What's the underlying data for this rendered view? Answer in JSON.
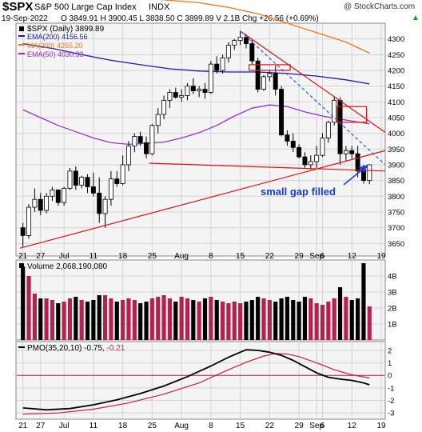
{
  "header": {
    "symbol": "$SPX",
    "name": "S&P 500 Large Cap Index",
    "exchange": "INDX",
    "date": "19-Sep-2022",
    "quote": "O 3849.91  H 3900.45  L 3838.50  C 3899.89  V 2.1B  Chg +26.56 (+0.69%)",
    "arrow_glyph": "▲",
    "watermark": "@ StockCharts.com"
  },
  "legend": {
    "price": "$SPX (Daily) 3899.89",
    "ema200": "EMA(200) 4156.56",
    "ma200": "MA(200) 4255.20",
    "ema50": "EMA(50) 4030.33"
  },
  "annotation": "small gap filled",
  "volume_label": "Volume 2,068,190,080",
  "pmo_label": "PMO(35,20,10) -0.75, ",
  "pmo_signal_value": "-0.21",
  "colors": {
    "up": "#ffffff",
    "down": "#000000",
    "ema200": "#1a1ab0",
    "ma200": "#f07818",
    "ema50": "#9a30cc",
    "trend": "#e01010",
    "blue_trend": "#2060e0",
    "annotation": "#1a3ce0",
    "volume_up": "#b42050",
    "volume_down": "#000000",
    "pmo": "#000000",
    "pmo_signal": "#c81e3c",
    "grid": "#d4d4d4",
    "panel_bg": "#f4f4f4"
  },
  "chart_data": [
    {
      "type": "candlestick",
      "panel": "price",
      "y_ticks": [
        3650,
        3700,
        3750,
        3800,
        3850,
        3900,
        3950,
        4000,
        4050,
        4100,
        4150,
        4200,
        4250,
        4300
      ],
      "ylim": [
        3610,
        4350
      ],
      "x_labels": [
        {
          "i": 0,
          "label": "21"
        },
        {
          "i": 3,
          "label": "27"
        },
        {
          "i": 7,
          "label": "Jul"
        },
        {
          "i": 12,
          "label": "11"
        },
        {
          "i": 17,
          "label": "18"
        },
        {
          "i": 22,
          "label": "25"
        },
        {
          "i": 27,
          "label": "Aug"
        },
        {
          "i": 32,
          "label": "8"
        },
        {
          "i": 37,
          "label": "15"
        },
        {
          "i": 42,
          "label": "22"
        },
        {
          "i": 47,
          "label": "29"
        },
        {
          "i": 50,
          "label": "Sep"
        },
        {
          "i": 51,
          "label": "6"
        },
        {
          "i": 56,
          "label": "12"
        },
        {
          "i": 61,
          "label": "19"
        }
      ],
      "ohlc": [
        [
          3700,
          3715,
          3640,
          3675
        ],
        [
          3675,
          3775,
          3665,
          3765
        ],
        [
          3765,
          3825,
          3750,
          3790
        ],
        [
          3790,
          3810,
          3740,
          3755
        ],
        [
          3755,
          3810,
          3745,
          3800
        ],
        [
          3800,
          3830,
          3785,
          3820
        ],
        [
          3820,
          3822,
          3770,
          3780
        ],
        [
          3780,
          3830,
          3770,
          3825
        ],
        [
          3825,
          3890,
          3820,
          3880
        ],
        [
          3880,
          3895,
          3820,
          3835
        ],
        [
          3835,
          3865,
          3825,
          3860
        ],
        [
          3860,
          3870,
          3810,
          3830
        ],
        [
          3830,
          3875,
          3800,
          3810
        ],
        [
          3810,
          3860,
          3715,
          3745
        ],
        [
          3745,
          3800,
          3700,
          3790
        ],
        [
          3790,
          3880,
          3770,
          3855
        ],
        [
          3855,
          3880,
          3830,
          3840
        ],
        [
          3840,
          3930,
          3835,
          3900
        ],
        [
          3900,
          3975,
          3880,
          3960
        ],
        [
          3960,
          4000,
          3940,
          3990
        ],
        [
          3990,
          4005,
          3960,
          3970
        ],
        [
          3970,
          3990,
          3920,
          3935
        ],
        [
          3935,
          4030,
          3930,
          4025
        ],
        [
          4025,
          4080,
          4000,
          4060
        ],
        [
          4060,
          4120,
          4045,
          4105
        ],
        [
          4105,
          4140,
          4080,
          4130
        ],
        [
          4130,
          4145,
          4110,
          4115
        ],
        [
          4115,
          4140,
          4100,
          4120
        ],
        [
          4120,
          4160,
          4105,
          4150
        ],
        [
          4150,
          4175,
          4125,
          4135
        ],
        [
          4135,
          4150,
          4115,
          4140
        ],
        [
          4140,
          4160,
          4110,
          4130
        ],
        [
          4130,
          4230,
          4125,
          4220
        ],
        [
          4220,
          4245,
          4190,
          4200
        ],
        [
          4200,
          4250,
          4190,
          4240
        ],
        [
          4240,
          4290,
          4225,
          4280
        ],
        [
          4280,
          4300,
          4265,
          4295
        ],
        [
          4295,
          4325,
          4280,
          4305
        ],
        [
          4305,
          4315,
          4270,
          4285
        ],
        [
          4285,
          4300,
          4220,
          4230
        ],
        [
          4230,
          4240,
          4130,
          4140
        ],
        [
          4140,
          4185,
          4135,
          4180
        ],
        [
          4180,
          4200,
          4165,
          4190
        ],
        [
          4190,
          4215,
          4120,
          4140
        ],
        [
          4140,
          4150,
          3990,
          3995
        ],
        [
          3995,
          4010,
          3960,
          3975
        ],
        [
          3975,
          4000,
          3940,
          3955
        ],
        [
          3955,
          3965,
          3920,
          3925
        ],
        [
          3925,
          3940,
          3890,
          3900
        ],
        [
          3900,
          3930,
          3885,
          3910
        ],
        [
          3910,
          3960,
          3890,
          3930
        ],
        [
          3930,
          4000,
          3925,
          3985
        ],
        [
          3985,
          4040,
          3970,
          4035
        ],
        [
          4035,
          4115,
          4025,
          4105
        ],
        [
          4105,
          4115,
          3900,
          3935
        ],
        [
          3935,
          3960,
          3910,
          3945
        ],
        [
          3945,
          3960,
          3920,
          3935
        ],
        [
          3935,
          3960,
          3860,
          3880
        ],
        [
          3880,
          3900,
          3840,
          3850
        ],
        [
          3850,
          3900,
          3838,
          3900
        ]
      ],
      "ema200": [
        [
          0,
          4285
        ],
        [
          5,
          4270
        ],
        [
          10,
          4250
        ],
        [
          15,
          4232
        ],
        [
          20,
          4218
        ],
        [
          25,
          4205
        ],
        [
          30,
          4198
        ],
        [
          35,
          4195
        ],
        [
          40,
          4195
        ],
        [
          45,
          4190
        ],
        [
          50,
          4182
        ],
        [
          55,
          4170
        ],
        [
          59,
          4157
        ]
      ],
      "ma200": [
        [
          0,
          4440
        ],
        [
          10,
          4440
        ],
        [
          20,
          4430
        ],
        [
          30,
          4415
        ],
        [
          35,
          4400
        ],
        [
          40,
          4380
        ],
        [
          45,
          4350
        ],
        [
          50,
          4320
        ],
        [
          55,
          4290
        ],
        [
          59,
          4255
        ]
      ],
      "ema50": [
        [
          0,
          4075
        ],
        [
          3,
          4050
        ],
        [
          6,
          4025
        ],
        [
          9,
          4005
        ],
        [
          12,
          3985
        ],
        [
          15,
          3970
        ],
        [
          18,
          3965
        ],
        [
          21,
          3968
        ],
        [
          24,
          3972
        ],
        [
          27,
          3985
        ],
        [
          30,
          4002
        ],
        [
          33,
          4025
        ],
        [
          36,
          4055
        ],
        [
          39,
          4080
        ],
        [
          42,
          4090
        ],
        [
          45,
          4085
        ],
        [
          48,
          4068
        ],
        [
          51,
          4055
        ],
        [
          54,
          4045
        ],
        [
          57,
          4036
        ],
        [
          59,
          4030
        ]
      ],
      "trendlines": [
        {
          "from": [
            -0.5,
            3635
          ],
          "to": [
            63.5,
            3945
          ],
          "style": "red-solid"
        },
        {
          "from": [
            21.5,
            3905
          ],
          "to": [
            63.5,
            3880
          ],
          "style": "red-solid"
        },
        {
          "from": [
            37,
            4325
          ],
          "to": [
            63.5,
            4003
          ],
          "style": "red-solid"
        },
        {
          "from": [
            37,
            4325
          ],
          "to": [
            63.5,
            3900
          ],
          "style": "blue-dashed"
        }
      ],
      "boxes": [
        {
          "x0": 38.5,
          "x1": 45.5,
          "y0": 4200,
          "y1": 4218
        },
        {
          "x0": 53.5,
          "x1": 58.5,
          "y0": 4035,
          "y1": 4085
        }
      ]
    },
    {
      "type": "bar",
      "panel": "volume",
      "y_ticks": [
        1,
        2,
        3,
        4
      ],
      "y_tick_labels": [
        "1B",
        "2B",
        "3B",
        "4B"
      ],
      "ylim": [
        0,
        5
      ],
      "values": [
        4.6,
        4.0,
        2.9,
        2.6,
        2.6,
        2.5,
        2.3,
        2.4,
        2.6,
        2.7,
        2.5,
        2.4,
        2.5,
        2.8,
        2.8,
        2.6,
        2.4,
        2.5,
        2.6,
        2.5,
        2.3,
        2.4,
        2.6,
        2.7,
        2.8,
        2.6,
        2.4,
        2.7,
        2.6,
        2.5,
        2.4,
        2.6,
        2.7,
        2.5,
        2.4,
        2.3,
        2.4,
        2.3,
        2.4,
        2.5,
        2.7,
        2.6,
        2.5,
        2.4,
        2.6,
        2.7,
        2.5,
        2.4,
        2.7,
        2.6,
        2.3,
        2.2,
        2.4,
        2.6,
        3.3,
        2.7,
        2.5,
        2.6,
        4.8,
        2.1
      ]
    },
    {
      "type": "line",
      "panel": "pmo",
      "y_ticks": [
        -3,
        -2,
        -1,
        0,
        1,
        2
      ],
      "ylim": [
        -3.5,
        2.7
      ],
      "pmo": [
        [
          0,
          -2.6
        ],
        [
          4,
          -2.75
        ],
        [
          8,
          -2.65
        ],
        [
          12,
          -2.35
        ],
        [
          16,
          -1.95
        ],
        [
          20,
          -1.45
        ],
        [
          24,
          -0.85
        ],
        [
          28,
          -0.1
        ],
        [
          32,
          0.75
        ],
        [
          35,
          1.45
        ],
        [
          37,
          1.85
        ],
        [
          38,
          2.05
        ],
        [
          40,
          2.0
        ],
        [
          42,
          1.85
        ],
        [
          44,
          1.6
        ],
        [
          46,
          1.2
        ],
        [
          48,
          0.7
        ],
        [
          50,
          0.2
        ],
        [
          52,
          -0.15
        ],
        [
          54,
          -0.3
        ],
        [
          56,
          -0.4
        ],
        [
          58,
          -0.6
        ],
        [
          59,
          -0.75
        ]
      ],
      "signal": [
        [
          0,
          -3.1
        ],
        [
          6,
          -3.0
        ],
        [
          12,
          -2.7
        ],
        [
          18,
          -2.2
        ],
        [
          24,
          -1.5
        ],
        [
          30,
          -0.6
        ],
        [
          34,
          0.25
        ],
        [
          38,
          1.05
        ],
        [
          41,
          1.55
        ],
        [
          43,
          1.75
        ],
        [
          45,
          1.7
        ],
        [
          47,
          1.5
        ],
        [
          50,
          1.0
        ],
        [
          53,
          0.45
        ],
        [
          56,
          0.05
        ],
        [
          59,
          -0.21
        ]
      ]
    }
  ]
}
